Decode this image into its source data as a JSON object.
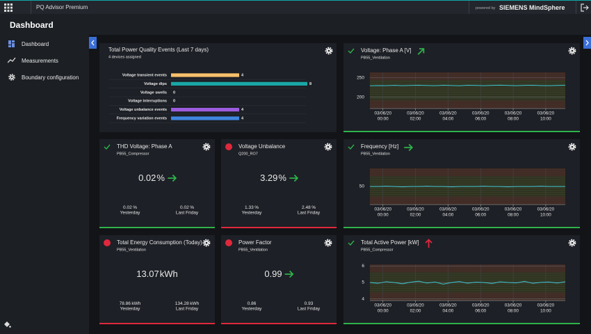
{
  "header": {
    "app_name": "PQ Advisor Premium",
    "powered_by": "powered by",
    "brand": "SIEMENS MindSphere"
  },
  "page_title": "Dashboard",
  "nav": [
    "Dashboard",
    "Measurements",
    "Boundary configuration"
  ],
  "events": {
    "title": "Total Power Quality Events (Last 7 days)",
    "subtitle": "4 devices assigned",
    "chart": {
      "type": "bar",
      "orientation": "horizontal",
      "categories": [
        "Voltage transient events",
        "Voltage dips",
        "Voltage swells",
        "Voltage interruptions",
        "Voltage unbalance events",
        "Frequency variation events"
      ],
      "values": [
        4,
        8,
        0,
        0,
        4,
        4
      ],
      "colors": [
        "#f7c06a",
        "#19a7a6",
        null,
        null,
        "#9d5ce0",
        "#3f86e0"
      ],
      "xlim": [
        0,
        8
      ]
    }
  },
  "trend_charts": [
    {
      "title": "Voltage: Phase A [V]",
      "device": "PB55_Ventilation",
      "status": "ok",
      "trend": {
        "direction": "up-right",
        "color": "#2fb34a"
      },
      "chart": {
        "type": "line",
        "color": "#3cc3d2",
        "x": [
          -0.8,
          -0.3,
          0.2,
          0.7,
          1.2,
          1.7,
          2.2,
          2.7,
          3.2,
          3.7,
          4.2,
          4.7,
          5.2,
          5.7,
          6.2,
          6.7,
          7.2,
          7.7,
          8.2,
          8.7,
          9.2,
          9.7,
          10.2,
          10.7,
          11.2
        ],
        "values": [
          229.5,
          230.1,
          229.8,
          230.6,
          229.9,
          230.4,
          231.0,
          230.2,
          229.7,
          230.8,
          230.3,
          229.6,
          230.9,
          230.5,
          229.9,
          230.7,
          231.2,
          230.4,
          229.8,
          230.6,
          230.9,
          230.1,
          229.7,
          230.5,
          231.0
        ],
        "xlim": [
          -0.8,
          11.2
        ],
        "ylim": [
          171,
          264
        ],
        "yticks": [
          200,
          250
        ],
        "xticks": [
          {
            "value": 0,
            "date": "03/06/20",
            "time": "00:00"
          },
          {
            "value": 2,
            "date": "03/06/20",
            "time": "02:00"
          },
          {
            "value": 4,
            "date": "03/06/20",
            "time": "04:00"
          },
          {
            "value": 6,
            "date": "03/06/20",
            "time": "06:00"
          },
          {
            "value": 8,
            "date": "03/06/20",
            "time": "08:00"
          },
          {
            "value": 10,
            "date": "03/06/20",
            "time": "10:00"
          }
        ]
      }
    },
    {
      "title": "Frequency [Hz]",
      "device": "PB55_Ventilation",
      "status": "ok",
      "trend": {
        "direction": "right",
        "color": "#2fb34a"
      },
      "chart": {
        "type": "line",
        "color": "#3cc3d2",
        "x": [
          -0.8,
          -0.3,
          0.2,
          0.7,
          1.2,
          1.7,
          2.2,
          2.7,
          3.2,
          3.7,
          4.2,
          4.7,
          5.2,
          5.7,
          6.2,
          6.7,
          7.2,
          7.7,
          8.2,
          8.7,
          9.2,
          9.7,
          10.2,
          10.7,
          11.2
        ],
        "values": [
          50.0,
          50.0,
          50.01,
          50.0,
          49.99,
          50.0,
          50.0,
          50.01,
          50.0,
          50.0,
          49.99,
          50.0,
          50.0,
          50.0,
          50.01,
          50.0,
          50.0,
          49.99,
          50.0,
          50.0,
          50.0,
          50.01,
          50.0,
          50.0,
          50.0
        ],
        "xlim": [
          -0.8,
          11.2
        ],
        "ylim": [
          49.5,
          50.5
        ],
        "yticks": [
          50
        ],
        "xticks": [
          {
            "value": 0,
            "date": "03/06/20",
            "time": "00:00"
          },
          {
            "value": 2,
            "date": "03/06/20",
            "time": "02:00"
          },
          {
            "value": 4,
            "date": "03/06/20",
            "time": "04:00"
          },
          {
            "value": 6,
            "date": "03/06/20",
            "time": "06:00"
          },
          {
            "value": 8,
            "date": "03/06/20",
            "time": "08:00"
          },
          {
            "value": 10,
            "date": "03/06/20",
            "time": "10:00"
          }
        ]
      }
    },
    {
      "title": "Total Active Power [kW]",
      "device": "PB55_Compressor",
      "status": "ok",
      "trend": {
        "direction": "up",
        "color": "#e0283c"
      },
      "chart": {
        "type": "line",
        "color": "#3cc3d2",
        "x": [
          -0.8,
          -0.3,
          0.2,
          0.7,
          1.2,
          1.7,
          2.2,
          2.7,
          3.2,
          3.7,
          4.2,
          4.7,
          5.2,
          5.7,
          6.2,
          6.7,
          7.2,
          7.7,
          8.2,
          8.7,
          9.2,
          9.7,
          10.2,
          10.7,
          11.2
        ],
        "values": [
          5.0,
          4.95,
          5.05,
          5.0,
          4.92,
          5.02,
          5.08,
          4.97,
          5.03,
          4.9,
          5.0,
          5.06,
          4.96,
          5.02,
          5.0,
          4.94,
          5.04,
          5.0,
          4.98,
          5.07,
          4.95,
          5.01,
          5.03,
          4.97,
          5.05
        ],
        "xlim": [
          -0.8,
          11.2
        ],
        "ylim": [
          3.9,
          6.1
        ],
        "yticks": [
          4,
          5,
          6
        ],
        "xticks": [
          {
            "value": 0,
            "date": "03/06/20",
            "time": "00:00"
          },
          {
            "value": 2,
            "date": "03/06/20",
            "time": "02:00"
          },
          {
            "value": 4,
            "date": "03/06/20",
            "time": "04:00"
          },
          {
            "value": 6,
            "date": "03/06/20",
            "time": "06:00"
          },
          {
            "value": 8,
            "date": "03/06/20",
            "time": "08:00"
          },
          {
            "value": 10,
            "date": "03/06/20",
            "time": "10:00"
          }
        ]
      }
    }
  ],
  "kpis": [
    {
      "title": "THD Voltage: Phase A",
      "device": "PB55_Compressor",
      "status": "ok",
      "value": 0.02,
      "unit": "%",
      "trend": {
        "direction": "right",
        "color": "#2fb34a"
      },
      "comparisons": [
        {
          "value": 0.02,
          "label": "Yesterday"
        },
        {
          "value": 0.02,
          "label": "Last Friday"
        }
      ]
    },
    {
      "title": "Voltage Unbalance",
      "device": "Q200_RO7",
      "status": "alert",
      "value": 3.29,
      "unit": "%",
      "trend": {
        "direction": "right",
        "color": "#2fb34a"
      },
      "comparisons": [
        {
          "value": 1.33,
          "label": "Yesterday"
        },
        {
          "value": 2.48,
          "label": "Last Friday"
        }
      ]
    },
    {
      "title": "Total Energy Consumption (Today)",
      "device": "PB55_Ventilation",
      "status": "alert",
      "value": 13.07,
      "unit": "kWh",
      "comparisons": [
        {
          "value": 78.86,
          "label": "Yesterday"
        },
        {
          "value": 134.28,
          "label": "Last Friday"
        }
      ]
    },
    {
      "title": "Power Factor",
      "device": "PB55_Ventilation",
      "status": "alert",
      "value": 0.99,
      "trend": {
        "direction": "right",
        "color": "#2fb34a"
      },
      "comparisons": [
        {
          "value": 0.86,
          "label": "Yesterday"
        },
        {
          "value": 0.93,
          "label": "Last Friday"
        }
      ]
    }
  ]
}
